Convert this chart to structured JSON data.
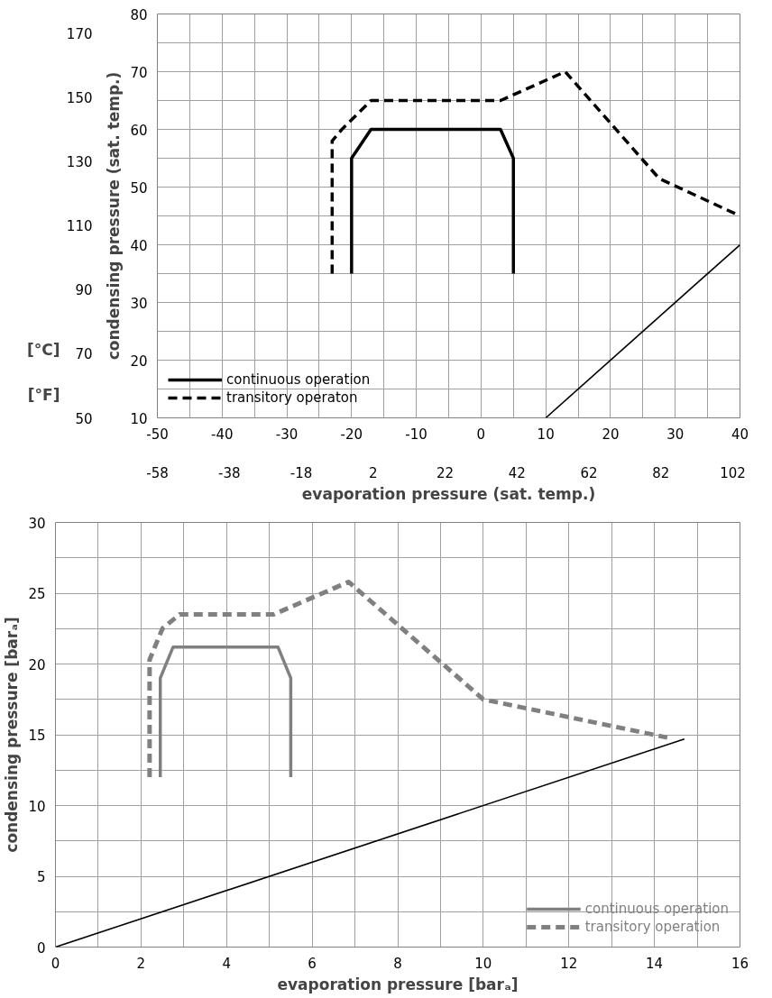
{
  "chart_data": [
    {
      "type": "line",
      "xlabel": "evaporation pressure (sat. temp.)",
      "ylabel": "condensing pressure (sat. temp.)",
      "xlim": [
        -50,
        40
      ],
      "xticks": [
        -50,
        {
          "value": -45,
          "label": null
        },
        -40,
        {
          "value": -35,
          "label": null
        },
        -30,
        {
          "value": -25,
          "label": null
        },
        -20,
        {
          "value": -15,
          "label": null
        },
        -10,
        {
          "value": -5,
          "label": null
        },
        0,
        {
          "value": 5,
          "label": null
        },
        10,
        {
          "value": 15,
          "label": null
        },
        20,
        {
          "value": 25,
          "label": null
        },
        30,
        {
          "value": 35,
          "label": null
        },
        40
      ],
      "ylim": [
        10,
        80
      ],
      "yticks": [
        10,
        {
          "value": 15,
          "label": null
        },
        20,
        {
          "value": 25,
          "label": null
        },
        30,
        {
          "value": 35,
          "label": null
        },
        40,
        {
          "value": 45,
          "label": null
        },
        50,
        {
          "value": 55,
          "label": null
        },
        60,
        {
          "value": 65,
          "label": null
        },
        70,
        {
          "value": 75,
          "label": null
        },
        80
      ],
      "y2lim": [
        50,
        176
      ],
      "y2ticks": [
        50,
        70,
        90,
        110,
        130,
        150,
        170
      ],
      "x2lim": [
        -58,
        104
      ],
      "x2ticks": [
        -58,
        -38,
        -18,
        2,
        22,
        42,
        62,
        82,
        102
      ],
      "annotations": [
        "[°C]",
        "[°F]"
      ],
      "grid": true,
      "legend": "bottom left",
      "series": [
        {
          "name": "continuous operation",
          "color": "#000000",
          "line_style": "solid",
          "x": [
            -20,
            -20,
            -17,
            3,
            5,
            5
          ],
          "values": [
            35,
            55,
            60,
            60,
            55,
            35
          ]
        },
        {
          "name": "transitory operaton",
          "color": "#000000",
          "line_style": "dashed",
          "x": [
            -23,
            -23,
            -21.5,
            -17,
            3,
            13,
            27.5,
            40
          ],
          "values": [
            35,
            58,
            60,
            65,
            65,
            70,
            51.5,
            45
          ]
        },
        {
          "color": "#000000",
          "line_style": "solid",
          "x": [
            10,
            40
          ],
          "values": [
            10,
            40
          ]
        }
      ]
    },
    {
      "type": "line",
      "xlabel": "evaporation pressure [barₐ]",
      "ylabel": "condensing pressure [barₐ]",
      "xlim": [
        0,
        16
      ],
      "xticks": [
        0,
        {
          "value": 1,
          "label": null
        },
        2,
        {
          "value": 3,
          "label": null
        },
        4,
        {
          "value": 5,
          "label": null
        },
        6,
        {
          "value": 7,
          "label": null
        },
        8,
        {
          "value": 9,
          "label": null
        },
        10,
        {
          "value": 11,
          "label": null
        },
        12,
        {
          "value": 13,
          "label": null
        },
        14,
        {
          "value": 15,
          "label": null
        },
        16
      ],
      "ylim": [
        0,
        30
      ],
      "yticks": [
        0,
        {
          "value": 2.5,
          "label": null
        },
        5,
        {
          "value": 7.5,
          "label": null
        },
        10,
        {
          "value": 12.5,
          "label": null
        },
        15,
        {
          "value": 17.5,
          "label": null
        },
        20,
        {
          "value": 22.5,
          "label": null
        },
        25,
        {
          "value": 27.5,
          "label": null
        },
        30
      ],
      "grid": true,
      "legend": "bottom right",
      "series": [
        {
          "name": "continuous operation",
          "color": "#808080",
          "line_style": "solid",
          "x": [
            2.45,
            2.45,
            2.75,
            5.2,
            5.5,
            5.5
          ],
          "values": [
            12,
            19,
            21.2,
            21.2,
            19,
            12
          ]
        },
        {
          "name": "transitory operation",
          "color": "#808080",
          "line_style": "dashed",
          "x": [
            2.2,
            2.2,
            2.5,
            2.9,
            5.1,
            6.85,
            10,
            14.3
          ],
          "values": [
            12,
            20.3,
            22.5,
            23.5,
            23.5,
            25.8,
            17.5,
            14.8
          ]
        },
        {
          "color": "#000000",
          "line_style": "solid",
          "x": [
            0,
            14.7
          ],
          "values": [
            0,
            14.7
          ]
        }
      ]
    }
  ]
}
